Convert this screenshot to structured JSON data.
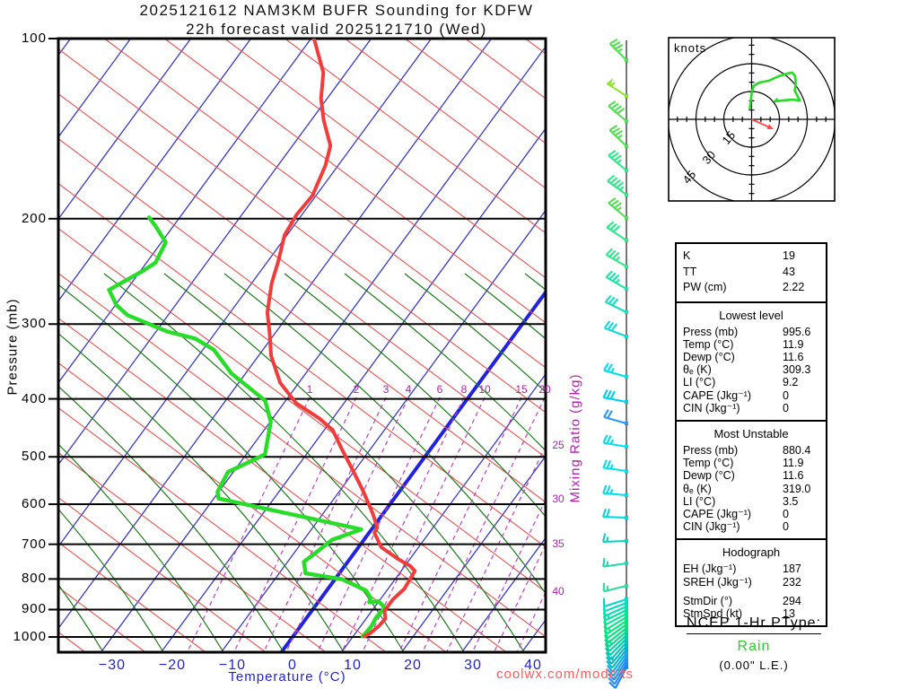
{
  "title": {
    "line1": "2025121612 NAM3KM BUFR Sounding for KDFW",
    "line2": "22h forecast valid 2025121710 (Wed)"
  },
  "axes": {
    "pressure_label": "Pressure (mb)",
    "temperature_label": "Temperature (°C)",
    "mixing_ratio_label": "Mixing Ratio (g/kg)"
  },
  "watermark": "coolwx.com/modelts",
  "hodograph_panel": {
    "units_label": "knots"
  },
  "ptype": {
    "heading": "NCEP 1-Hr PType:",
    "value": "Rain",
    "extra": "(0.00\" L.E.)"
  },
  "stats": {
    "indices": [
      {
        "label": "K",
        "value": "19"
      },
      {
        "label": "TT",
        "value": "43"
      },
      {
        "label": "PW (cm)",
        "value": "2.22"
      }
    ],
    "sections": [
      {
        "title": "Lowest level",
        "rows": [
          [
            "Press (mb)",
            "995.6"
          ],
          [
            "Temp (°C)",
            "11.9"
          ],
          [
            "Dewp (°C)",
            "11.6"
          ],
          [
            "θₑ (K)",
            "309.3"
          ],
          [
            "LI (°C)",
            "9.2"
          ],
          [
            "CAPE (Jkg⁻¹)",
            "0"
          ],
          [
            "CIN (Jkg⁻¹)",
            "0"
          ]
        ]
      },
      {
        "title": "Most Unstable",
        "rows": [
          [
            "Press (mb)",
            "880.4"
          ],
          [
            "Temp (°C)",
            "11.9"
          ],
          [
            "Dewp (°C)",
            "11.6"
          ],
          [
            "θₑ (K)",
            "319.0"
          ],
          [
            "LI (°C)",
            "3.5"
          ],
          [
            "CAPE (Jkg⁻¹)",
            "0"
          ],
          [
            "CIN (Jkg⁻¹)",
            "0"
          ]
        ]
      },
      {
        "title": "Hodograph",
        "rows": [
          [
            "EH (Jkg⁻¹)",
            "187"
          ],
          [
            "SREH (Jkg⁻¹)",
            "232"
          ]
        ],
        "rows2": [
          [
            "StmDir (°)",
            "294"
          ],
          [
            "StmSpd (kt)",
            "13"
          ]
        ]
      }
    ]
  },
  "chart_data": {
    "type": "skewt-log-p-sounding",
    "pressure_ticks": [
      100,
      200,
      300,
      400,
      500,
      600,
      700,
      800,
      900,
      1000
    ],
    "temp_ticks": [
      -30,
      -20,
      -10,
      0,
      10,
      20,
      30,
      40
    ],
    "mixing_ratio_top_labels": [
      1,
      2,
      3,
      4,
      6,
      8,
      10,
      15,
      20
    ],
    "mixing_ratio_side_labels": [
      25,
      30,
      35,
      40
    ],
    "profiles": {
      "temperature_c": [
        [
          100,
          -69.5
        ],
        [
          114,
          -63.8
        ],
        [
          126,
          -61.0
        ],
        [
          137,
          -57.9
        ],
        [
          151,
          -53.7
        ],
        [
          163,
          -52.1
        ],
        [
          183,
          -50.6
        ],
        [
          197,
          -50.9
        ],
        [
          213,
          -50.4
        ],
        [
          235,
          -48.3
        ],
        [
          256,
          -46.7
        ],
        [
          287,
          -43.8
        ],
        [
          309,
          -41.1
        ],
        [
          339,
          -37.9
        ],
        [
          376,
          -33.1
        ],
        [
          407,
          -27.9
        ],
        [
          431,
          -22.3
        ],
        [
          451,
          -18.6
        ],
        [
          484,
          -14.9
        ],
        [
          525,
          -10.5
        ],
        [
          570,
          -6.1
        ],
        [
          621,
          -1.8
        ],
        [
          656,
          0.7
        ],
        [
          670,
          0.9
        ],
        [
          708,
          3.8
        ],
        [
          740,
          7.9
        ],
        [
          761,
          10.9
        ],
        [
          776,
          12.3
        ],
        [
          831,
          12.7
        ],
        [
          865,
          12.1
        ],
        [
          904,
          12.1
        ],
        [
          932,
          13.2
        ],
        [
          960,
          13.0
        ],
        [
          987,
          12.4
        ],
        [
          998,
          11.9
        ]
      ],
      "dewpoint_c": [
        [
          199,
          -75.1
        ],
        [
          206,
          -72.9
        ],
        [
          219,
          -69.3
        ],
        [
          237,
          -68.5
        ],
        [
          245,
          -69.7
        ],
        [
          263,
          -72.9
        ],
        [
          279,
          -69.8
        ],
        [
          290,
          -66.7
        ],
        [
          309,
          -58.0
        ],
        [
          317,
          -52.7
        ],
        [
          331,
          -48.2
        ],
        [
          363,
          -42.3
        ],
        [
          384,
          -37.5
        ],
        [
          403,
          -33.4
        ],
        [
          437,
          -29.9
        ],
        [
          495,
          -26.9
        ],
        [
          505,
          -28.0
        ],
        [
          530,
          -30.9
        ],
        [
          572,
          -30.2
        ],
        [
          587,
          -29.2
        ],
        [
          661,
          -1.7
        ],
        [
          688,
          -5.3
        ],
        [
          732,
          -6.7
        ],
        [
          749,
          -7.3
        ],
        [
          783,
          -5.6
        ],
        [
          801,
          1.2
        ],
        [
          823,
          4.6
        ],
        [
          837,
          6.6
        ],
        [
          860,
          8.2
        ],
        [
          875,
          8.5
        ],
        [
          872,
          9.9
        ],
        [
          884,
          11.0
        ],
        [
          896,
          11.8
        ],
        [
          927,
          11.5
        ],
        [
          959,
          11.8
        ],
        [
          998,
          11.6
        ]
      ]
    },
    "wind_barbs": {
      "format": "[y_px, wind_from_deg, speed_kt, color]",
      "main": [
        [
          67,
          315,
          35,
          "#52e052"
        ],
        [
          107,
          303,
          55,
          "#8ce62e"
        ],
        [
          135,
          310,
          40,
          "#52e052"
        ],
        [
          163,
          314,
          35,
          "#52e052"
        ],
        [
          190,
          310,
          35,
          "#2ee88a"
        ],
        [
          217,
          306,
          45,
          "#2ee88a"
        ],
        [
          243,
          310,
          35,
          "#52e052"
        ],
        [
          268,
          304,
          30,
          "#2ee88a"
        ],
        [
          297,
          300,
          35,
          "#2ee88a"
        ],
        [
          322,
          300,
          35,
          "#1fe3a7"
        ],
        [
          348,
          296,
          30,
          "#14dfc2"
        ],
        [
          375,
          291,
          30,
          "#0cdcd4"
        ],
        [
          420,
          286,
          25,
          "#00e0ee"
        ],
        [
          448,
          281,
          30,
          "#00ccf0"
        ],
        [
          472,
          286,
          20,
          "#2b96f5"
        ],
        [
          498,
          280,
          25,
          "#00e0ee"
        ],
        [
          525,
          278,
          25,
          "#00e0ee"
        ],
        [
          552,
          275,
          25,
          "#00dce8"
        ],
        [
          577,
          272,
          20,
          "#00d8dc"
        ],
        [
          603,
          268,
          15,
          "#0ed2c0"
        ],
        [
          628,
          262,
          15,
          "#1cd8ae"
        ],
        [
          653,
          256,
          15,
          "#2add9c"
        ]
      ],
      "surface_fan": [
        [
          668,
          252,
          10,
          "#00d8cc"
        ],
        [
          672,
          249,
          10,
          "#00dcc0"
        ],
        [
          676,
          246,
          10,
          "#00e0b0"
        ],
        [
          680,
          244,
          15,
          "#00e4a0"
        ],
        [
          684,
          242,
          10,
          "#00e894"
        ],
        [
          688,
          239,
          10,
          "#00e888"
        ],
        [
          692,
          236,
          15,
          "#00e87e"
        ],
        [
          696,
          234,
          10,
          "#00e878"
        ],
        [
          700,
          231,
          10,
          "#00e280"
        ],
        [
          704,
          229,
          15,
          "#00dc8c"
        ],
        [
          708,
          227,
          10,
          "#00d49a"
        ],
        [
          712,
          225,
          10,
          "#00cca8"
        ],
        [
          716,
          222,
          10,
          "#00c4b6"
        ],
        [
          720,
          220,
          15,
          "#00bcc4"
        ],
        [
          724,
          218,
          10,
          "#00b4d2"
        ],
        [
          728,
          216,
          10,
          "#14aae0"
        ],
        [
          732,
          214,
          10,
          "#1ea0ea"
        ],
        [
          736,
          212,
          10,
          "#1e96f0"
        ],
        [
          740,
          210,
          10,
          "#1e8cf4"
        ],
        [
          744,
          208,
          10,
          "#1e82f8"
        ]
      ]
    },
    "hodograph": {
      "rings_kt": [
        15,
        30,
        45
      ],
      "trace_uv_kt": [
        [
          -1.0,
          5.3
        ],
        [
          -0.5,
          9.7
        ],
        [
          0,
          14.0
        ],
        [
          1.0,
          17.9
        ],
        [
          3.9,
          19.8
        ],
        [
          9.2,
          20.8
        ],
        [
          14.5,
          23.2
        ],
        [
          19.4,
          24.7
        ],
        [
          21.8,
          25.2
        ],
        [
          23.2,
          23.7
        ],
        [
          23.7,
          21.3
        ],
        [
          23.7,
          18.4
        ],
        [
          23.2,
          15.5
        ],
        [
          25.2,
          11.6
        ],
        [
          26.1,
          10.2
        ],
        [
          21.8,
          10.6
        ],
        [
          16.9,
          10.2
        ],
        [
          12.6,
          9.7
        ],
        [
          14.0,
          11.1
        ]
      ],
      "storm_motion_uv_kt": [
        11.9,
        -5.3
      ]
    },
    "colors": {
      "isotherm": "#3838cc",
      "isotherm_zero": "#2222e0",
      "dry_adiabat": "#f05050",
      "moist_adiabat": "#1c7a1c",
      "mixing_ratio": "#c040c0",
      "temperature": "#f23b3b",
      "dewpoint": "#28dd28",
      "axis_blue": "#2222cc",
      "hodo_trace": "#22dd22",
      "storm_arrow": "#ff4444",
      "rain_green": "#2ecc2e",
      "watermark_red": "#ff5c5c"
    }
  }
}
